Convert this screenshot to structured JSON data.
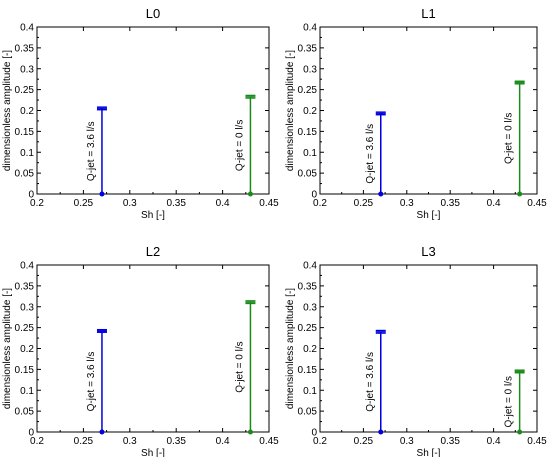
{
  "chart_data": [
    {
      "type": "stem",
      "title": "L0",
      "xlabel": "Sh [-]",
      "ylabel": "dimensionless amplitude [-]",
      "xlim": [
        0.2,
        0.45
      ],
      "ylim": [
        0,
        0.4
      ],
      "xticks": [
        "0.2",
        "0.25",
        "0.3",
        "0.35",
        "0.4",
        "0.45"
      ],
      "yticks": [
        "0",
        "0.05",
        "0.1",
        "0.15",
        "0.2",
        "0.25",
        "0.3",
        "0.35",
        "0.4"
      ],
      "grid": false,
      "series": [
        {
          "label": "Q-jet = 3.6 l/s",
          "x": 0.27,
          "y": 0.205,
          "err": 0.003,
          "color": "#0000dd"
        },
        {
          "label": "Q-jet = 0 l/s",
          "x": 0.43,
          "y": 0.233,
          "err": 0.003,
          "color": "#1a8a1a"
        }
      ]
    },
    {
      "type": "stem",
      "title": "L1",
      "xlabel": "Sh [-]",
      "ylabel": "dimensionless amplitude [-]",
      "xlim": [
        0.2,
        0.45
      ],
      "ylim": [
        0,
        0.4
      ],
      "xticks": [
        "0.2",
        "0.25",
        "0.3",
        "0.35",
        "0.4",
        "0.45"
      ],
      "yticks": [
        "0",
        "0.05",
        "0.1",
        "0.15",
        "0.2",
        "0.25",
        "0.3",
        "0.35",
        "0.4"
      ],
      "grid": false,
      "series": [
        {
          "label": "Q-jet = 3.6 l/s",
          "x": 0.27,
          "y": 0.193,
          "err": 0.003,
          "color": "#0000dd"
        },
        {
          "label": "Q-jet = 0 l/s",
          "x": 0.43,
          "y": 0.267,
          "err": 0.003,
          "color": "#1a8a1a"
        }
      ]
    },
    {
      "type": "stem",
      "title": "L2",
      "xlabel": "Sh [-]",
      "ylabel": "dimensionless amplitude [-]",
      "xlim": [
        0.2,
        0.45
      ],
      "ylim": [
        0,
        0.4
      ],
      "xticks": [
        "0.2",
        "0.25",
        "0.3",
        "0.35",
        "0.4",
        "0.45"
      ],
      "yticks": [
        "0",
        "0.05",
        "0.1",
        "0.15",
        "0.2",
        "0.25",
        "0.3",
        "0.35",
        "0.4"
      ],
      "grid": false,
      "series": [
        {
          "label": "Q-jet = 3.6 l/s",
          "x": 0.27,
          "y": 0.242,
          "err": 0.003,
          "color": "#0000dd"
        },
        {
          "label": "Q-jet = 0 l/s",
          "x": 0.43,
          "y": 0.311,
          "err": 0.003,
          "color": "#1a8a1a"
        }
      ]
    },
    {
      "type": "stem",
      "title": "L3",
      "xlabel": "Sh [-]",
      "ylabel": "dimensionless amplitude [-]",
      "xlim": [
        0.2,
        0.45
      ],
      "ylim": [
        0,
        0.4
      ],
      "xticks": [
        "0.2",
        "0.25",
        "0.3",
        "0.35",
        "0.4",
        "0.45"
      ],
      "yticks": [
        "0",
        "0.05",
        "0.1",
        "0.15",
        "0.2",
        "0.25",
        "0.3",
        "0.35",
        "0.4"
      ],
      "grid": false,
      "series": [
        {
          "label": "Q-jet = 3.6 l/s",
          "x": 0.27,
          "y": 0.24,
          "err": 0.003,
          "color": "#0000dd"
        },
        {
          "label": "Q-jet = 0 l/s",
          "x": 0.43,
          "y": 0.145,
          "err": 0.003,
          "color": "#1a8a1a"
        }
      ]
    }
  ]
}
